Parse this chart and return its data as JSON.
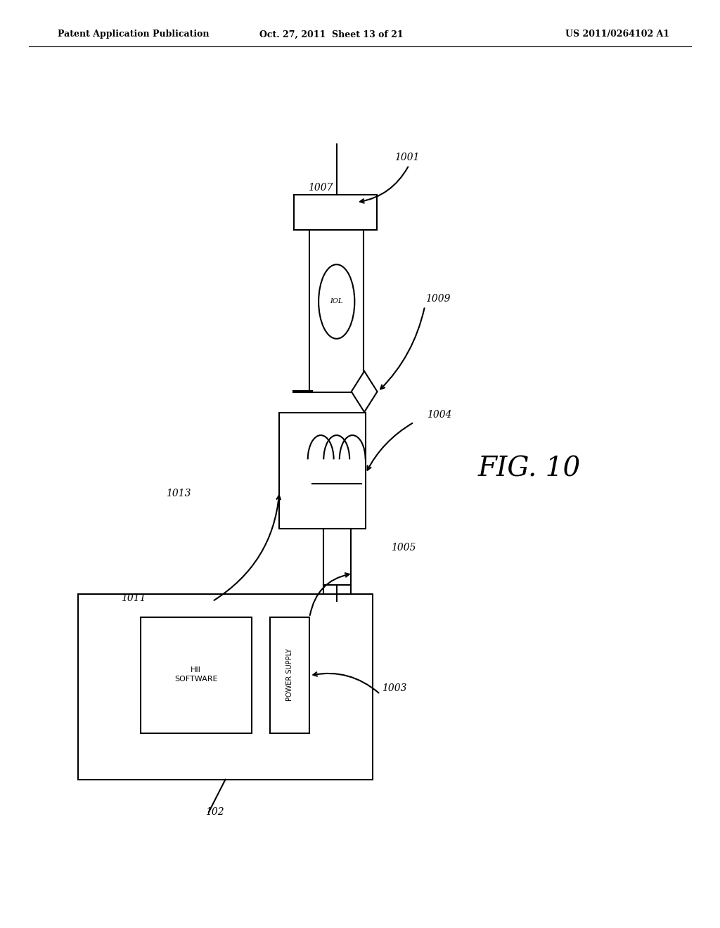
{
  "bg_color": "#ffffff",
  "line_color": "#000000",
  "header_left": "Patent Application Publication",
  "header_mid": "Oct. 27, 2011  Sheet 13 of 21",
  "header_right": "US 2011/0264102 A1"
}
